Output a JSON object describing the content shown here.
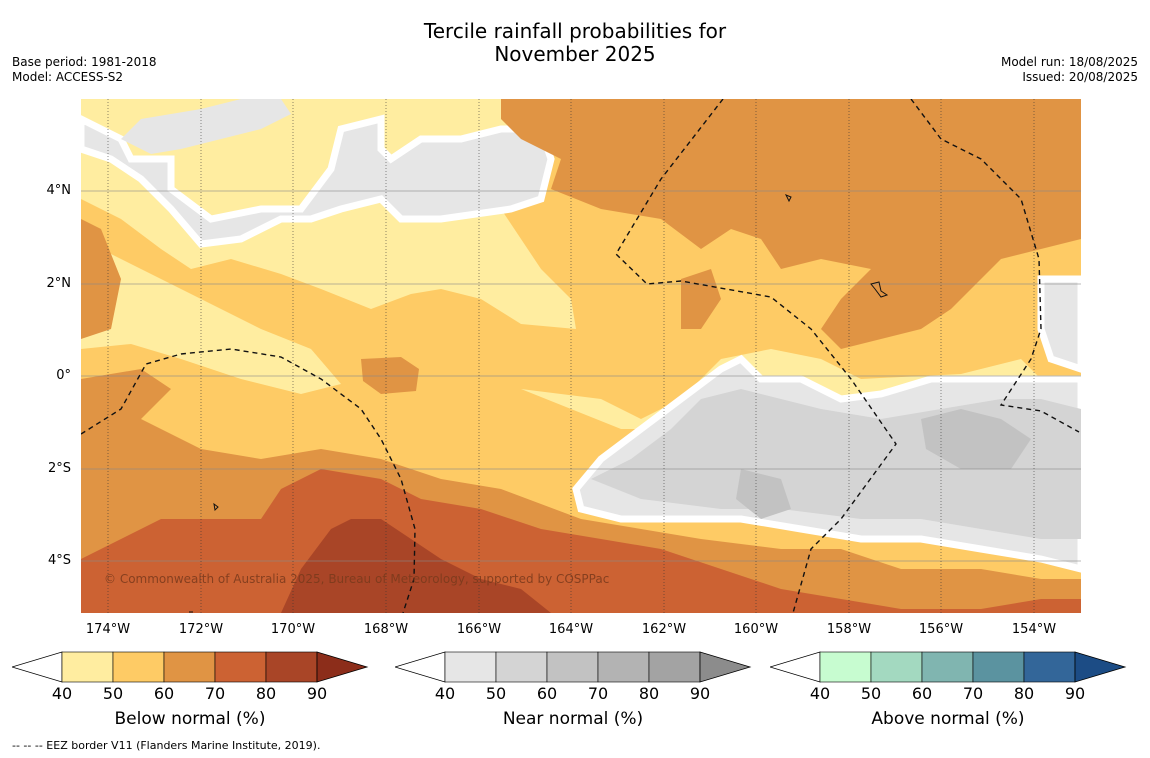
{
  "title": {
    "line1": "Tercile rainfall probabilities for",
    "line2": "November 2025"
  },
  "meta_left": {
    "base_period": "Base period: 1981-2018",
    "model": "Model: ACCESS-S2"
  },
  "meta_right": {
    "model_run": "Model run: 18/08/2025",
    "issued": "Issued: 20/08/2025"
  },
  "map": {
    "lat_labels": [
      "4°N",
      "2°N",
      "0°",
      "2°S",
      "4°S"
    ],
    "lon_labels": [
      "174°W",
      "172°W",
      "170°W",
      "168°W",
      "166°W",
      "164°W",
      "162°W",
      "160°W",
      "158°W",
      "156°W",
      "154°W"
    ],
    "copyright": "© Commonwealth of Australia 2025, Bureau of Meteorology, supported by COSPPac"
  },
  "colorbars": [
    {
      "title": "Below normal (%)",
      "ticks": [
        "40",
        "50",
        "60",
        "70",
        "80",
        "90"
      ],
      "colors": [
        "#ffeda0",
        "#fecb65",
        "#e09444",
        "#cc6233",
        "#a94527",
        "#8c2d1a"
      ]
    },
    {
      "title": "Near normal (%)",
      "ticks": [
        "40",
        "50",
        "60",
        "70",
        "80",
        "90"
      ],
      "colors": [
        "#e6e6e6",
        "#d4d4d4",
        "#c2c2c2",
        "#b3b3b3",
        "#a3a3a3",
        "#8c8c8c"
      ]
    },
    {
      "title": "Above normal (%)",
      "ticks": [
        "40",
        "50",
        "60",
        "70",
        "80",
        "90"
      ],
      "colors": [
        "#c7fcd0",
        "#a3d9c0",
        "#80b5b0",
        "#5b93a0",
        "#336699",
        "#1c4c85"
      ]
    }
  ],
  "footnote": "--  --  -- EEZ border V11 (Flanders Marine Institute, 2019)."
}
